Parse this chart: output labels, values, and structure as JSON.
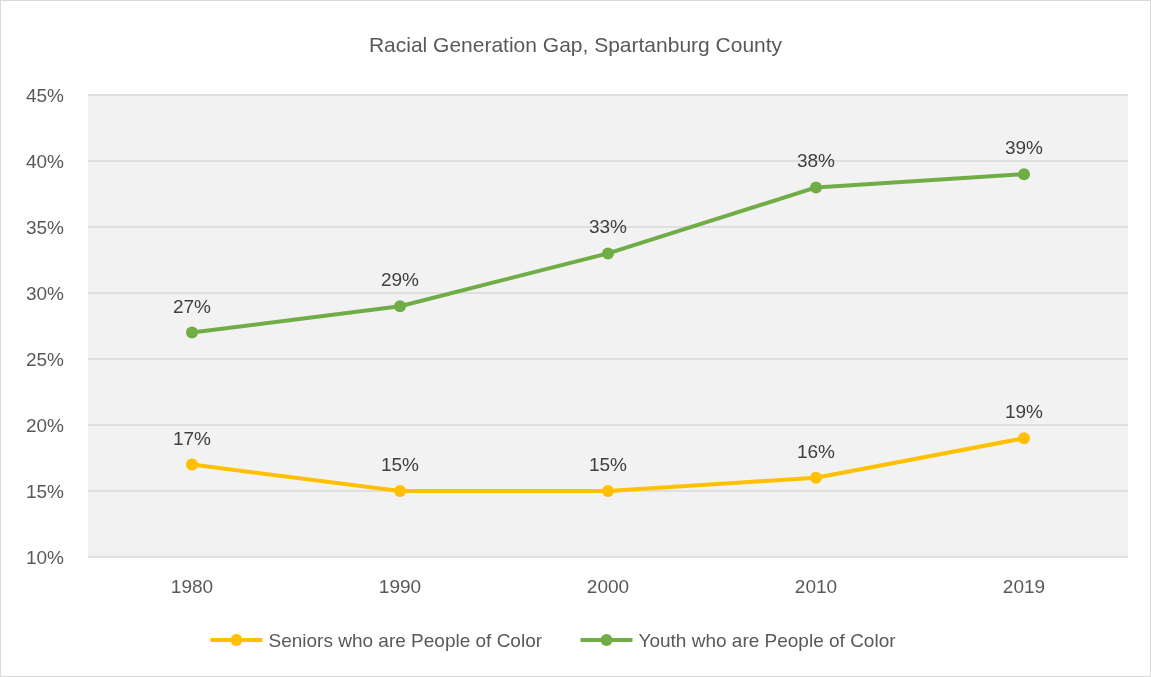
{
  "chart_data": {
    "type": "line",
    "title": "Racial Generation Gap, Spartanburg County",
    "categories": [
      "1980",
      "1990",
      "2000",
      "2010",
      "2019"
    ],
    "series": [
      {
        "name": "Seniors who are People of Color",
        "color": "#ffc000",
        "values": [
          17,
          15,
          15,
          16,
          19
        ],
        "value_labels": [
          "17%",
          "15%",
          "15%",
          "16%",
          "19%"
        ]
      },
      {
        "name": "Youth who are People of Color",
        "color": "#70ad47",
        "values": [
          27,
          29,
          33,
          38,
          39
        ],
        "value_labels": [
          "27%",
          "29%",
          "33%",
          "38%",
          "39%"
        ]
      }
    ],
    "ylim": [
      10,
      45
    ],
    "yticks": [
      {
        "value": 10,
        "label": "10%"
      },
      {
        "value": 15,
        "label": "15%"
      },
      {
        "value": 20,
        "label": "20%"
      },
      {
        "value": 25,
        "label": "25%"
      },
      {
        "value": 30,
        "label": "30%"
      },
      {
        "value": 35,
        "label": "35%"
      },
      {
        "value": 40,
        "label": "40%"
      },
      {
        "value": 45,
        "label": "45%"
      }
    ],
    "grid": "y",
    "legend": "bottom",
    "marker": "circle",
    "line_style": "solid"
  }
}
